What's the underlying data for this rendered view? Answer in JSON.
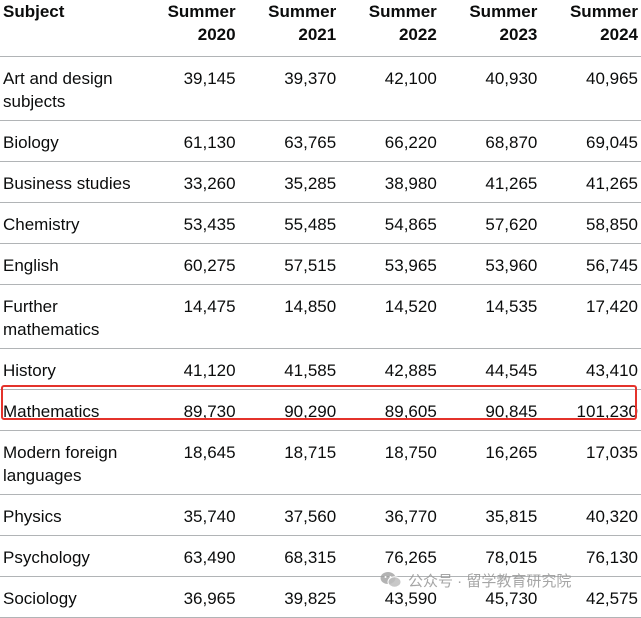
{
  "table": {
    "headers": {
      "subject": "Subject",
      "years": [
        {
          "line1": "Summer",
          "line2": "2020"
        },
        {
          "line1": "Summer",
          "line2": "2021"
        },
        {
          "line1": "Summer",
          "line2": "2022"
        },
        {
          "line1": "Summer",
          "line2": "2023"
        },
        {
          "line1": "Summer",
          "line2": "2024"
        }
      ]
    },
    "rows": [
      {
        "subject_line1": "Art and design",
        "subject_line2": "subjects",
        "values": [
          "39,145",
          "39,370",
          "42,100",
          "40,930",
          "40,965"
        ]
      },
      {
        "subject_line1": "Biology",
        "subject_line2": "",
        "values": [
          "61,130",
          "63,765",
          "66,220",
          "68,870",
          "69,045"
        ]
      },
      {
        "subject_line1": "Business studies",
        "subject_line2": "",
        "values": [
          "33,260",
          "35,285",
          "38,980",
          "41,265",
          "41,265"
        ]
      },
      {
        "subject_line1": "Chemistry",
        "subject_line2": "",
        "values": [
          "53,435",
          "55,485",
          "54,865",
          "57,620",
          "58,850"
        ]
      },
      {
        "subject_line1": "English",
        "subject_line2": "",
        "values": [
          "60,275",
          "57,515",
          "53,965",
          "53,960",
          "56,745"
        ]
      },
      {
        "subject_line1": "Further",
        "subject_line2": "mathematics",
        "values": [
          "14,475",
          "14,850",
          "14,520",
          "14,535",
          "17,420"
        ]
      },
      {
        "subject_line1": "History",
        "subject_line2": "",
        "values": [
          "41,120",
          "41,585",
          "42,885",
          "44,545",
          "43,410"
        ]
      },
      {
        "subject_line1": "Mathematics",
        "subject_line2": "",
        "values": [
          "89,730",
          "90,290",
          "89,605",
          "90,845",
          "101,230"
        ]
      },
      {
        "subject_line1": "Modern foreign",
        "subject_line2": "languages",
        "values": [
          "18,645",
          "18,715",
          "18,750",
          "16,265",
          "17,035"
        ]
      },
      {
        "subject_line1": "Physics",
        "subject_line2": "",
        "values": [
          "35,740",
          "37,560",
          "36,770",
          "35,815",
          "40,320"
        ]
      },
      {
        "subject_line1": "Psychology",
        "subject_line2": "",
        "values": [
          "63,490",
          "68,315",
          "76,265",
          "78,015",
          "76,130"
        ]
      },
      {
        "subject_line1": "Sociology",
        "subject_line2": "",
        "values": [
          "36,965",
          "39,825",
          "43,590",
          "45,730",
          "42,575"
        ]
      }
    ]
  },
  "highlight": {
    "row": "Mathematics",
    "color": "#e4322b"
  },
  "watermark": {
    "text": "公众号 · 留学教育研究院",
    "icon": "wechat-icon"
  }
}
